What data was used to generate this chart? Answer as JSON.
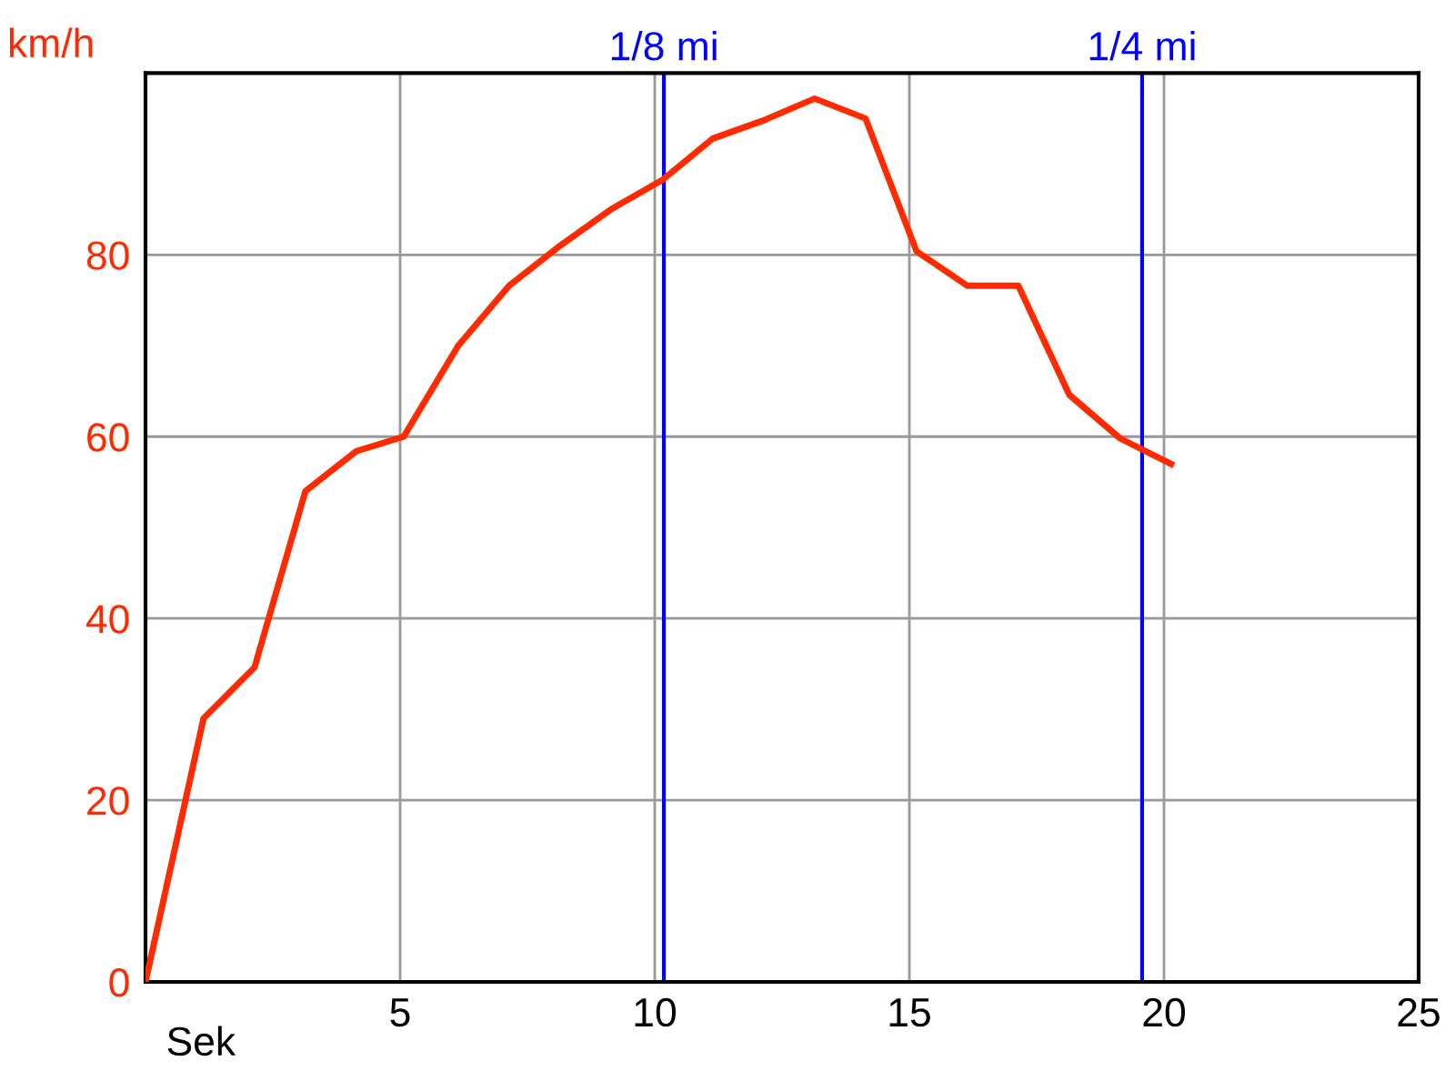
{
  "chart_data": {
    "type": "line",
    "xlabel": "Sek",
    "ylabel": "km/h",
    "x": [
      0,
      1.14,
      2.14,
      3.14,
      4.14,
      5.07,
      6.14,
      7.14,
      8.14,
      9.14,
      10.14,
      11.14,
      12.14,
      13.14,
      14.14,
      15.14,
      16.14,
      17.14,
      18.14,
      19.14,
      20.14
    ],
    "series": [
      {
        "color": "#ff2a00",
        "values": [
          0,
          29,
          34.6,
          54,
          58.4,
          60,
          70,
          76.6,
          81,
          85,
          88.2,
          92.8,
          94.8,
          97.2,
          95,
          80.4,
          76.6,
          76.6,
          64.6,
          59.8,
          57
        ]
      }
    ],
    "xlim": [
      0,
      25
    ],
    "xticks": [
      {
        "value": 0,
        "label": null
      },
      5,
      10,
      15,
      20,
      25
    ],
    "ylim": [
      0,
      100
    ],
    "yticks": [
      0,
      20,
      40,
      60,
      80
    ],
    "ref_lines": [
      {
        "axis": "x",
        "value": 10.18,
        "label": "1/8 mi",
        "color": "#0000ff"
      },
      {
        "axis": "x",
        "value": 19.57,
        "label": "1/4 mi",
        "color": "#0000ff"
      }
    ],
    "grid": true,
    "legend": false,
    "marker": "none",
    "line_style": "solid"
  }
}
